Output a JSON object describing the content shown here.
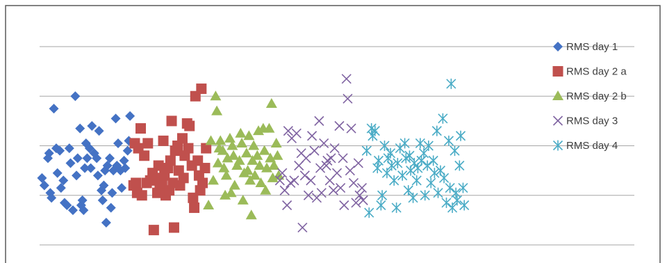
{
  "chart_data": {
    "type": "scatter",
    "title": "",
    "xlabel": "",
    "ylabel": "",
    "xlim": [
      0,
      25
    ],
    "ylim": [
      0,
      4
    ],
    "grid": true,
    "axis_labels_shown": false,
    "legend_position": "right",
    "series": [
      {
        "name": "RMS day 1",
        "marker": "diamond",
        "color": "#4472C4",
        "points": [
          [
            0.1,
            1.35
          ],
          [
            0.2,
            1.2
          ],
          [
            0.35,
            1.75
          ],
          [
            0.4,
            1.85
          ],
          [
            0.45,
            1.05
          ],
          [
            0.5,
            0.95
          ],
          [
            0.6,
            2.75
          ],
          [
            0.7,
            1.95
          ],
          [
            0.75,
            1.45
          ],
          [
            0.85,
            1.9
          ],
          [
            0.9,
            1.15
          ],
          [
            1.0,
            1.3
          ],
          [
            1.05,
            0.85
          ],
          [
            1.15,
            0.8
          ],
          [
            1.25,
            1.95
          ],
          [
            1.3,
            1.65
          ],
          [
            1.4,
            0.7
          ],
          [
            1.5,
            3.0
          ],
          [
            1.55,
            1.4
          ],
          [
            1.6,
            1.75
          ],
          [
            1.7,
            2.35
          ],
          [
            1.75,
            0.8
          ],
          [
            1.8,
            0.9
          ],
          [
            1.85,
            0.7
          ],
          [
            1.9,
            1.55
          ],
          [
            1.95,
            2.05
          ],
          [
            2.0,
            1.75
          ],
          [
            2.1,
            1.95
          ],
          [
            2.15,
            1.55
          ],
          [
            2.2,
            2.4
          ],
          [
            2.3,
            1.85
          ],
          [
            2.4,
            1.75
          ],
          [
            2.45,
            1.4
          ],
          [
            2.5,
            2.3
          ],
          [
            2.6,
            1.1
          ],
          [
            2.65,
            0.9
          ],
          [
            2.7,
            1.2
          ],
          [
            2.75,
            1.5
          ],
          [
            2.8,
            0.45
          ],
          [
            2.85,
            1.6
          ],
          [
            2.95,
            1.75
          ],
          [
            3.0,
            0.75
          ],
          [
            3.05,
            1.05
          ],
          [
            3.1,
            1.5
          ],
          [
            3.2,
            2.55
          ],
          [
            3.25,
            1.6
          ],
          [
            3.3,
            2.05
          ],
          [
            3.4,
            1.5
          ],
          [
            3.45,
            1.15
          ],
          [
            3.55,
            1.7
          ],
          [
            3.6,
            1.55
          ],
          [
            3.7,
            1.9
          ],
          [
            3.75,
            2.1
          ],
          [
            3.8,
            2.6
          ]
        ]
      },
      {
        "name": "RMS day 2 a",
        "marker": "square",
        "color": "#C0504D",
        "points": [
          [
            3.95,
            1.2
          ],
          [
            4.0,
            2.05
          ],
          [
            4.05,
            1.25
          ],
          [
            4.1,
            1.05
          ],
          [
            4.15,
            1.95
          ],
          [
            4.25,
            2.35
          ],
          [
            4.3,
            1.0
          ],
          [
            4.4,
            1.8
          ],
          [
            4.5,
            1.25
          ],
          [
            4.55,
            2.05
          ],
          [
            4.65,
            1.3
          ],
          [
            4.75,
            1.45
          ],
          [
            4.8,
            0.3
          ],
          [
            4.85,
            1.35
          ],
          [
            4.95,
            1.05
          ],
          [
            5.0,
            1.6
          ],
          [
            5.05,
            1.2
          ],
          [
            5.15,
            1.25
          ],
          [
            5.2,
            2.1
          ],
          [
            5.25,
            1.4
          ],
          [
            5.3,
            1.0
          ],
          [
            5.4,
            1.55
          ],
          [
            5.45,
            1.1
          ],
          [
            5.5,
            1.7
          ],
          [
            5.55,
            2.5
          ],
          [
            5.6,
            1.25
          ],
          [
            5.65,
            0.35
          ],
          [
            5.7,
            1.9
          ],
          [
            5.8,
            2.0
          ],
          [
            5.85,
            1.5
          ],
          [
            5.9,
            1.2
          ],
          [
            6.0,
            2.15
          ],
          [
            6.05,
            1.35
          ],
          [
            6.1,
            1.8
          ],
          [
            6.2,
            2.45
          ],
          [
            6.25,
            1.95
          ],
          [
            6.3,
            2.4
          ],
          [
            6.4,
            1.6
          ],
          [
            6.45,
            0.95
          ],
          [
            6.5,
            0.75
          ],
          [
            6.55,
            3.0
          ],
          [
            6.65,
            1.7
          ],
          [
            6.7,
            1.4
          ],
          [
            6.75,
            1.1
          ],
          [
            6.8,
            3.15
          ],
          [
            6.85,
            1.25
          ],
          [
            6.95,
            1.55
          ],
          [
            7.0,
            1.95
          ]
        ]
      },
      {
        "name": "RMS day 2 b",
        "marker": "triangle",
        "color": "#9BBB59",
        "points": [
          [
            7.1,
            0.8
          ],
          [
            7.2,
            2.1
          ],
          [
            7.3,
            1.3
          ],
          [
            7.4,
            3.0
          ],
          [
            7.45,
            2.7
          ],
          [
            7.5,
            1.65
          ],
          [
            7.55,
            1.95
          ],
          [
            7.6,
            2.1
          ],
          [
            7.7,
            1.9
          ],
          [
            7.75,
            1.55
          ],
          [
            7.8,
            1.0
          ],
          [
            7.85,
            1.4
          ],
          [
            7.9,
            1.75
          ],
          [
            8.0,
            2.15
          ],
          [
            8.05,
            1.05
          ],
          [
            8.1,
            2.0
          ],
          [
            8.15,
            1.8
          ],
          [
            8.2,
            1.2
          ],
          [
            8.3,
            1.6
          ],
          [
            8.4,
            1.7
          ],
          [
            8.45,
            2.25
          ],
          [
            8.5,
            2.05
          ],
          [
            8.55,
            0.9
          ],
          [
            8.6,
            1.45
          ],
          [
            8.7,
            1.85
          ],
          [
            8.75,
            1.5
          ],
          [
            8.8,
            2.2
          ],
          [
            8.85,
            1.3
          ],
          [
            8.9,
            0.6
          ],
          [
            8.95,
            1.7
          ],
          [
            9.0,
            2.0
          ],
          [
            9.05,
            1.4
          ],
          [
            9.15,
            1.8
          ],
          [
            9.2,
            2.3
          ],
          [
            9.25,
            1.6
          ],
          [
            9.3,
            1.25
          ],
          [
            9.4,
            2.35
          ],
          [
            9.45,
            1.9
          ],
          [
            9.5,
            1.1
          ],
          [
            9.55,
            1.55
          ],
          [
            9.65,
            2.35
          ],
          [
            9.7,
            1.75
          ],
          [
            9.75,
            2.85
          ],
          [
            9.8,
            1.35
          ],
          [
            9.85,
            1.6
          ],
          [
            9.95,
            2.05
          ],
          [
            10.0,
            1.8
          ],
          [
            10.05,
            1.4
          ]
        ]
      },
      {
        "name": "RMS day 3",
        "marker": "x",
        "color": "#8064A2",
        "points": [
          [
            10.1,
            1.3
          ],
          [
            10.2,
            1.45
          ],
          [
            10.3,
            1.1
          ],
          [
            10.4,
            0.8
          ],
          [
            10.45,
            2.3
          ],
          [
            10.55,
            1.25
          ],
          [
            10.6,
            2.15
          ],
          [
            10.7,
            1.3
          ],
          [
            10.8,
            2.25
          ],
          [
            10.9,
            1.6
          ],
          [
            11.0,
            1.85
          ],
          [
            11.05,
            0.35
          ],
          [
            11.15,
            1.4
          ],
          [
            11.2,
            1.75
          ],
          [
            11.3,
            1.0
          ],
          [
            11.4,
            1.3
          ],
          [
            11.45,
            2.2
          ],
          [
            11.55,
            1.9
          ],
          [
            11.65,
            0.95
          ],
          [
            11.75,
            2.5
          ],
          [
            11.8,
            1.55
          ],
          [
            11.85,
            1.05
          ],
          [
            11.95,
            2.05
          ],
          [
            12.05,
            1.6
          ],
          [
            12.1,
            1.7
          ],
          [
            12.2,
            1.3
          ],
          [
            12.25,
            1.75
          ],
          [
            12.35,
            1.1
          ],
          [
            12.4,
            1.95
          ],
          [
            12.5,
            1.45
          ],
          [
            12.6,
            2.4
          ],
          [
            12.65,
            1.15
          ],
          [
            12.75,
            1.75
          ],
          [
            12.8,
            0.8
          ],
          [
            12.9,
            3.35
          ],
          [
            12.95,
            2.95
          ],
          [
            13.05,
            1.5
          ],
          [
            13.1,
            2.35
          ],
          [
            13.2,
            1.25
          ],
          [
            13.3,
            0.85
          ],
          [
            13.4,
            1.65
          ],
          [
            13.45,
            1.0
          ],
          [
            13.55,
            1.15
          ],
          [
            13.6,
            0.9
          ]
        ]
      },
      {
        "name": "RMS day 4",
        "marker": "asterisk",
        "color": "#4BACC6",
        "points": [
          [
            13.75,
            1.9
          ],
          [
            13.85,
            0.65
          ],
          [
            13.95,
            2.35
          ],
          [
            14.0,
            2.2
          ],
          [
            14.1,
            2.3
          ],
          [
            14.2,
            1.55
          ],
          [
            14.25,
            1.7
          ],
          [
            14.35,
            0.8
          ],
          [
            14.4,
            1.0
          ],
          [
            14.5,
            2.0
          ],
          [
            14.6,
            1.45
          ],
          [
            14.65,
            1.75
          ],
          [
            14.75,
            1.85
          ],
          [
            14.8,
            1.6
          ],
          [
            14.9,
            1.3
          ],
          [
            15.0,
            0.75
          ],
          [
            15.05,
            1.65
          ],
          [
            15.15,
            1.95
          ],
          [
            15.25,
            1.4
          ],
          [
            15.35,
            2.05
          ],
          [
            15.4,
            1.75
          ],
          [
            15.5,
            1.1
          ],
          [
            15.55,
            1.8
          ],
          [
            15.6,
            1.5
          ],
          [
            15.7,
            0.95
          ],
          [
            15.75,
            1.65
          ],
          [
            15.85,
            1.3
          ],
          [
            15.9,
            1.55
          ],
          [
            16.0,
            2.05
          ],
          [
            16.05,
            1.7
          ],
          [
            16.15,
            1.85
          ],
          [
            16.2,
            1.0
          ],
          [
            16.3,
            1.6
          ],
          [
            16.35,
            2.0
          ],
          [
            16.45,
            1.25
          ],
          [
            16.55,
            1.7
          ],
          [
            16.6,
            1.45
          ],
          [
            16.7,
            2.3
          ],
          [
            16.75,
            1.05
          ],
          [
            16.85,
            1.5
          ],
          [
            16.95,
            2.55
          ],
          [
            17.0,
            1.35
          ],
          [
            17.1,
            0.85
          ],
          [
            17.2,
            2.1
          ],
          [
            17.25,
            1.15
          ],
          [
            17.3,
            3.25
          ],
          [
            17.35,
            0.75
          ],
          [
            17.45,
            1.9
          ],
          [
            17.5,
            1.05
          ],
          [
            17.55,
            0.9
          ],
          [
            17.65,
            1.6
          ],
          [
            17.7,
            2.2
          ],
          [
            17.8,
            1.15
          ],
          [
            17.85,
            0.8
          ]
        ]
      }
    ]
  }
}
